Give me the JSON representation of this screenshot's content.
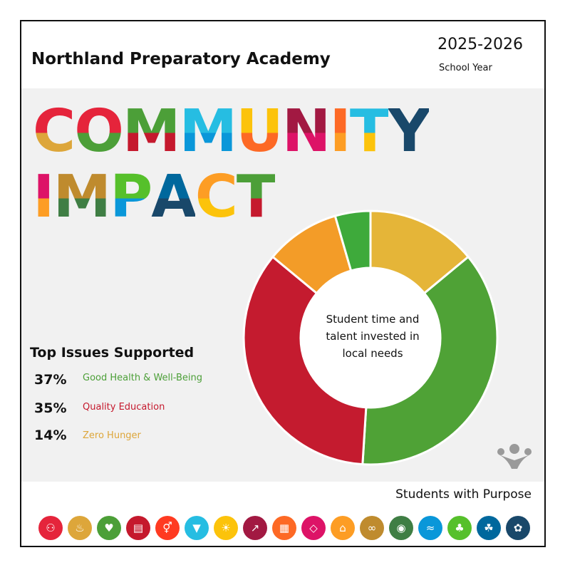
{
  "header": {
    "school_name": "Northland Preparatory Academy",
    "year": "2025-2026",
    "year_label": "School Year"
  },
  "title": {
    "line1": [
      {
        "ch": "C",
        "top": "#e5243b",
        "bottom": "#dda63a"
      },
      {
        "ch": "O",
        "top": "#e5243b",
        "bottom": "#4c9f38"
      },
      {
        "ch": "M",
        "top": "#4c9f38",
        "bottom": "#c5192d"
      },
      {
        "ch": "M",
        "top": "#26bde2",
        "bottom": "#0a97d9"
      },
      {
        "ch": "U",
        "top": "#fcc30b",
        "bottom": "#fd6925"
      },
      {
        "ch": "N",
        "top": "#a21942",
        "bottom": "#dd1367"
      },
      {
        "ch": "I",
        "top": "#fd6925",
        "bottom": "#fd9d24"
      },
      {
        "ch": "T",
        "top": "#26bde2",
        "bottom": "#fcc30b"
      },
      {
        "ch": "Y",
        "top": "#19486a",
        "bottom": "#19486a"
      }
    ],
    "line2": [
      {
        "ch": "I",
        "top": "#dd1367",
        "bottom": "#fd9d24"
      },
      {
        "ch": "M",
        "top": "#bf8b2e",
        "bottom": "#3f7e44"
      },
      {
        "ch": "P",
        "top": "#56c02b",
        "bottom": "#0a97d9"
      },
      {
        "ch": "A",
        "top": "#00689d",
        "bottom": "#19486a"
      },
      {
        "ch": "C",
        "top": "#fd9d24",
        "bottom": "#fcc30b"
      },
      {
        "ch": "T",
        "top": "#4c9f38",
        "bottom": "#c5192d"
      }
    ]
  },
  "issues": {
    "heading": "Top Issues Supported",
    "items": [
      {
        "pct": "37%",
        "label": "Good Health & Well-Being",
        "color": "#4c9f38"
      },
      {
        "pct": "35%",
        "label": "Quality Education",
        "color": "#c5192d"
      },
      {
        "pct": "14%",
        "label": "Zero Hunger",
        "color": "#dda63a"
      }
    ]
  },
  "chart_data": {
    "type": "pie",
    "categories": [
      "Zero Hunger",
      "Good Health & Well-Being",
      "Quality Education",
      "Other (orange)",
      "Other (green)"
    ],
    "values": [
      14,
      37,
      35,
      9.5,
      4.5
    ],
    "colors": [
      "#e5b538",
      "#4fa236",
      "#c41b2f",
      "#f39c28",
      "#3eaa3b"
    ],
    "center_label": "Student time and talent invested in local needs",
    "center_lines": [
      "Student time and",
      "talent invested in",
      "local needs"
    ]
  },
  "footer": {
    "tagline": "Students with Purpose",
    "goals": [
      {
        "icon": "people-icon",
        "glyph": "⚇",
        "color": "#e5243b"
      },
      {
        "icon": "bowl-icon",
        "glyph": "♨",
        "color": "#dda63a"
      },
      {
        "icon": "heartbeat-icon",
        "glyph": "♥",
        "color": "#4c9f38"
      },
      {
        "icon": "book-icon",
        "glyph": "▤",
        "color": "#c5192d"
      },
      {
        "icon": "gender-icon",
        "glyph": "⚥",
        "color": "#ff3a21"
      },
      {
        "icon": "water-drop-icon",
        "glyph": "▼",
        "color": "#26bde2"
      },
      {
        "icon": "sun-icon",
        "glyph": "☀",
        "color": "#fcc30b"
      },
      {
        "icon": "growth-chart-icon",
        "glyph": "↗",
        "color": "#a21942"
      },
      {
        "icon": "cubes-icon",
        "glyph": "▦",
        "color": "#fd6925"
      },
      {
        "icon": "equality-icon",
        "glyph": "◇",
        "color": "#dd1367"
      },
      {
        "icon": "city-icon",
        "glyph": "⌂",
        "color": "#fd9d24"
      },
      {
        "icon": "infinity-icon",
        "glyph": "∞",
        "color": "#bf8b2e"
      },
      {
        "icon": "eye-globe-icon",
        "glyph": "◉",
        "color": "#3f7e44"
      },
      {
        "icon": "fish-icon",
        "glyph": "≈",
        "color": "#0a97d9"
      },
      {
        "icon": "tree-icon",
        "glyph": "♣",
        "color": "#56c02b"
      },
      {
        "icon": "dove-icon",
        "glyph": "☘",
        "color": "#00689d"
      },
      {
        "icon": "flower-rings-icon",
        "glyph": "✿",
        "color": "#19486a"
      }
    ]
  }
}
